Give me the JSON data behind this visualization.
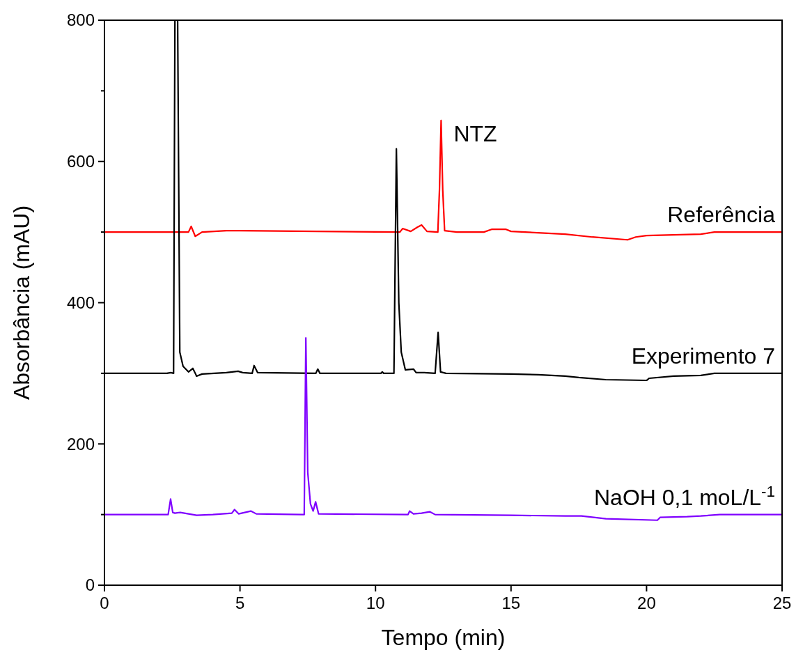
{
  "chart_data": {
    "type": "line",
    "xlabel": "Tempo (min)",
    "ylabel": "Absorbância (mAU)",
    "xlim": [
      0,
      25
    ],
    "xticks": [
      0,
      5,
      10,
      15,
      20,
      25
    ],
    "ylim": [
      0,
      800
    ],
    "yticks": [
      0,
      {
        "value": 100,
        "label": null
      },
      200,
      {
        "value": 300,
        "label": null
      },
      400,
      {
        "value": 500,
        "label": null
      },
      600,
      {
        "value": 700,
        "label": null
      },
      800
    ],
    "grid": false,
    "marker": "none",
    "line_style": "solid",
    "annotations": [
      {
        "text": "NTZ",
        "x": 12.42,
        "y": 658
      }
    ],
    "series": [
      {
        "name": "Referência",
        "color": "#ff0000",
        "x": [
          0,
          3.1,
          3.2,
          3.35,
          3.6,
          4.5,
          5,
          10.9,
          11,
          11.3,
          11.55,
          11.7,
          11.9,
          12.3,
          12.36,
          12.42,
          12.48,
          12.55,
          13,
          14,
          14.3,
          14.8,
          15,
          17,
          18,
          19.3,
          19.6,
          20,
          22,
          22.5,
          25
        ],
        "values": [
          500,
          500,
          508,
          494,
          500,
          502,
          502,
          500,
          505,
          501,
          507,
          510,
          501,
          500,
          560,
          658,
          560,
          502,
          500,
          500,
          504,
          504,
          501,
          497,
          493,
          489,
          493,
          495,
          497,
          500,
          500
        ]
      },
      {
        "name": "Experimento 7",
        "color": "#000000",
        "x": [
          0,
          2.3,
          2.45,
          2.55,
          2.6,
          2.7,
          2.78,
          2.9,
          3.1,
          3.26,
          3.35,
          3.4,
          3.6,
          4.5,
          4.93,
          5.1,
          5.45,
          5.52,
          5.65,
          7.8,
          7.87,
          7.95,
          10.2,
          10.25,
          10.3,
          10.68,
          10.77,
          10.86,
          10.95,
          11.1,
          11.4,
          11.5,
          11.8,
          12.2,
          12.31,
          12.4,
          12.6,
          15,
          16,
          17,
          17.5,
          18.5,
          20,
          20.1,
          21,
          22,
          22.5,
          25
        ],
        "values": [
          300,
          300,
          301,
          300,
          800,
          800,
          330,
          310,
          302,
          307,
          300,
          296,
          299,
          301,
          303,
          301,
          300,
          311,
          301,
          300,
          306,
          300,
          300,
          302,
          300,
          300,
          618,
          400,
          330,
          305,
          306,
          301,
          301,
          300,
          358,
          302,
          300,
          299,
          298,
          296,
          294,
          291,
          290,
          293,
          296,
          297,
          300,
          300
        ]
      },
      {
        "name": "NaOH 0,1 moL/L$^{-1}$",
        "color": "#7f00ff",
        "x": [
          0,
          2.35,
          2.44,
          2.52,
          2.6,
          2.8,
          3.4,
          4,
          4.7,
          4.8,
          4.95,
          5.4,
          5.6,
          7.3,
          7.37,
          7.43,
          7.5,
          7.6,
          7.7,
          7.79,
          7.9,
          11.2,
          11.26,
          11.4,
          11.7,
          12,
          12.2,
          15,
          17,
          17.6,
          18.5,
          20.4,
          20.5,
          21.5,
          22,
          22.7,
          25
        ],
        "values": [
          100,
          100,
          122,
          103,
          102,
          103,
          99,
          100,
          102,
          107,
          101,
          105,
          101,
          100,
          100,
          350,
          160,
          115,
          105,
          118,
          101,
          100,
          105,
          101,
          102,
          104,
          100,
          99,
          98,
          98,
          94,
          92,
          96,
          97,
          98,
          100,
          100
        ]
      }
    ]
  }
}
